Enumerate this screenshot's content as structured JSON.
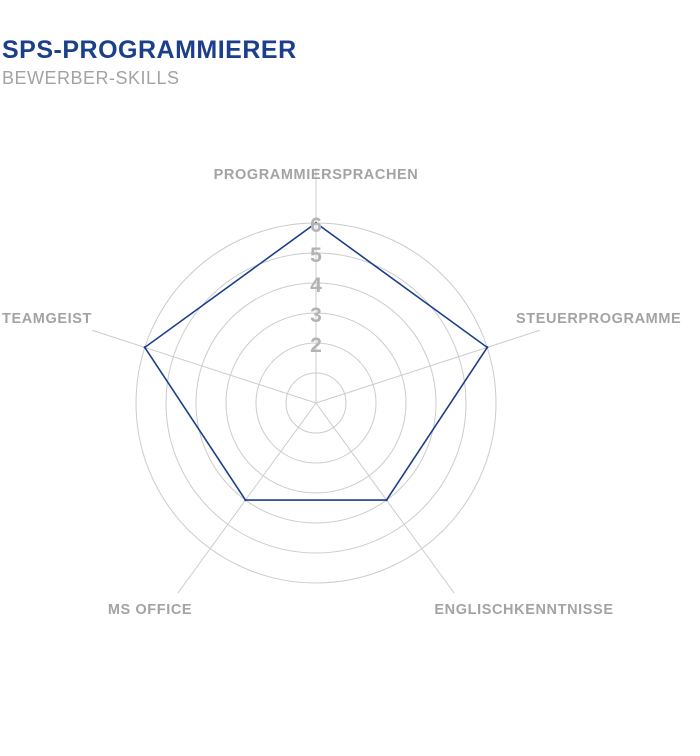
{
  "chart_data": {
    "type": "radar",
    "title": "SPS-PROGRAMMIERER",
    "subtitle": "BEWERBER-SKILLS",
    "axes": [
      "PROGRAMMIERSPRACHEN",
      "STEUERPROGRAMME",
      "ENGLISCHKENNTNISSE",
      "MS OFFICE",
      "TEAMGEIST"
    ],
    "values": [
      6,
      6,
      4,
      4,
      6
    ],
    "rmax": 6,
    "ticks": [
      1,
      2,
      3,
      4,
      5,
      6
    ],
    "tick_labels": [
      "2",
      "3",
      "4",
      "5",
      "6"
    ],
    "grid": "circular",
    "legend": "none"
  },
  "colors": {
    "title": "#1b3f8b",
    "subtitle": "#a3a3a3",
    "series_line": "#1b3f8b",
    "grid": "#cccccc",
    "axis_label": "#a3a3a3",
    "tick_label": "#b3b3b3"
  }
}
